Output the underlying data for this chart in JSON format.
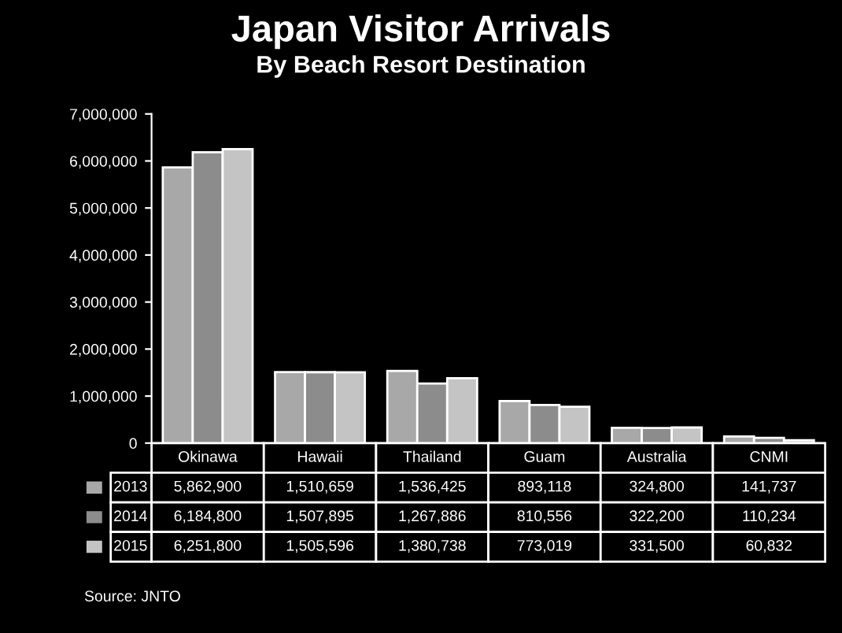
{
  "chart_data": {
    "type": "bar",
    "title": "Japan Visitor Arrivals",
    "subtitle": "By Beach Resort Destination",
    "categories": [
      "Okinawa",
      "Hawaii",
      "Thailand",
      "Guam",
      "Australia",
      "CNMI"
    ],
    "series": [
      {
        "name": "2013",
        "color": "#a8a8a8",
        "values": [
          5862900,
          1510659,
          1536425,
          893118,
          324800,
          141737
        ],
        "value_labels": [
          "5,862,900",
          "1,510,659",
          "1,536,425",
          "893,118",
          "324,800",
          "141,737"
        ]
      },
      {
        "name": "2014",
        "color": "#8c8c8c",
        "values": [
          6184800,
          1507895,
          1267886,
          810556,
          322200,
          110234
        ],
        "value_labels": [
          "6,184,800",
          "1,507,895",
          "1,267,886",
          "810,556",
          "322,200",
          "110,234"
        ]
      },
      {
        "name": "2015",
        "color": "#c4c4c4",
        "values": [
          6251800,
          1505596,
          1380738,
          773019,
          331500,
          60832
        ],
        "value_labels": [
          "6,251,800",
          "1,505,596",
          "1,380,738",
          "773,019",
          "331,500",
          "60,832"
        ]
      }
    ],
    "ylim": [
      0,
      7000000
    ],
    "yticks": [
      {
        "value": 0,
        "label": "0"
      },
      {
        "value": 1000000,
        "label": "1,000,000"
      },
      {
        "value": 2000000,
        "label": "2,000,000"
      },
      {
        "value": 3000000,
        "label": "3,000,000"
      },
      {
        "value": 4000000,
        "label": "4,000,000"
      },
      {
        "value": 5000000,
        "label": "5,000,000"
      },
      {
        "value": 6000000,
        "label": "6,000,000"
      },
      {
        "value": 7000000,
        "label": "7,000,000"
      }
    ],
    "grid": false,
    "legend": "bottom",
    "annotations": [
      "Source: JNTO"
    ]
  }
}
